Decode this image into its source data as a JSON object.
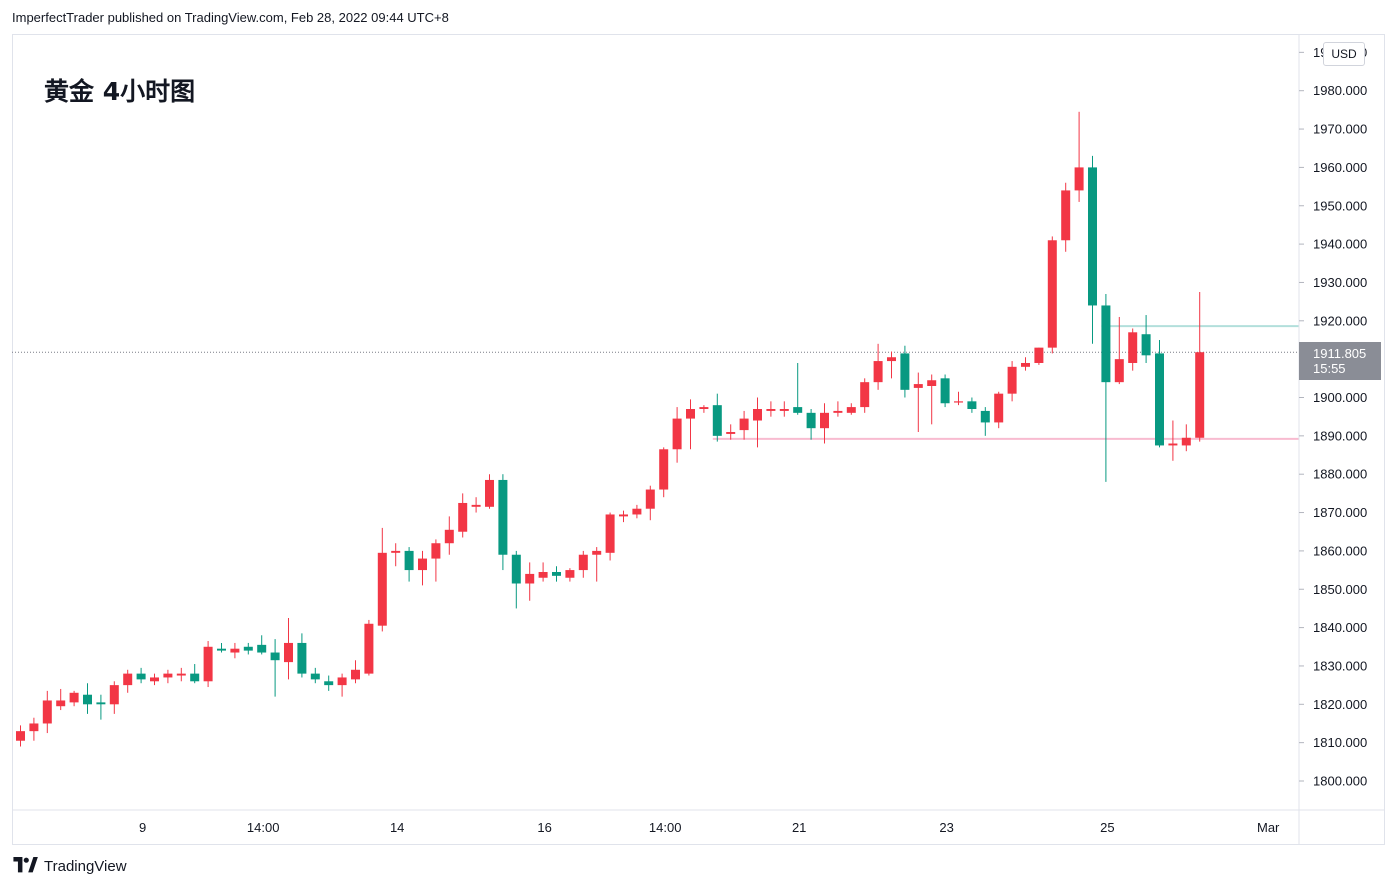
{
  "header": {
    "published_text": "ImperfectTrader published on TradingView.com, Feb 28, 2022 09:44 UTC+8"
  },
  "footer": {
    "brand": "TradingView",
    "logo_icon": "tradingview-logo-icon"
  },
  "price_axis": {
    "currency": "USD",
    "current_price": "1911.805",
    "countdown": "15:55"
  },
  "colors": {
    "up": "#f23645",
    "down": "#089981",
    "resistance_line": "#b2dfdb",
    "support_line": "#f8bbd0"
  },
  "chart_data": {
    "type": "candlestick",
    "title": "黄金 4小时图",
    "ylim": [
      1792,
      1996
    ],
    "yticks": [
      1800,
      1810,
      1820,
      1830,
      1840,
      1850,
      1860,
      1870,
      1880,
      1890,
      1900,
      1910,
      1920,
      1930,
      1940,
      1950,
      1960,
      1970,
      1980,
      1990
    ],
    "ytick_labels": [
      "1800.000",
      "1810.000",
      "1820.000",
      "1830.000",
      "1840.000",
      "1850.000",
      "1860.000",
      "1870.000",
      "1880.000",
      "1890.000",
      "1900.000",
      "1910.000",
      "1920.000",
      "1930.000",
      "1940.000",
      "1950.000",
      "1960.000",
      "1970.000",
      "1980.000",
      "1990.000"
    ],
    "xtick_labels": [
      {
        "label": "9",
        "bar": 9
      },
      {
        "label": "14:00",
        "bar": 18
      },
      {
        "label": "14",
        "bar": 28
      },
      {
        "label": "16",
        "bar": 39
      },
      {
        "label": "14:00",
        "bar": 48
      },
      {
        "label": "21",
        "bar": 58
      },
      {
        "label": "23",
        "bar": 69
      },
      {
        "label": "25",
        "bar": 81
      },
      {
        "label": "Mar",
        "bar": 93
      }
    ],
    "current_price": 1911.805,
    "horizontal_lines": [
      {
        "kind": "resistance",
        "value": 1918.6,
        "from_bar": 81
      },
      {
        "kind": "support",
        "value": 1889.2,
        "from_bar": 52
      }
    ],
    "candles": [
      {
        "o": 1810.5,
        "h": 1814.5,
        "l": 1809.0,
        "c": 1813.0
      },
      {
        "o": 1813.0,
        "h": 1816.5,
        "l": 1810.5,
        "c": 1815.0
      },
      {
        "o": 1815.0,
        "h": 1823.5,
        "l": 1812.5,
        "c": 1821.0
      },
      {
        "o": 1819.5,
        "h": 1824.0,
        "l": 1818.5,
        "c": 1821.0
      },
      {
        "o": 1820.5,
        "h": 1823.5,
        "l": 1819.5,
        "c": 1823.0
      },
      {
        "o": 1822.5,
        "h": 1825.5,
        "l": 1817.5,
        "c": 1820.0
      },
      {
        "o": 1820.5,
        "h": 1822.5,
        "l": 1816.0,
        "c": 1820.0
      },
      {
        "o": 1820.0,
        "h": 1826.0,
        "l": 1817.5,
        "c": 1825.0
      },
      {
        "o": 1825.0,
        "h": 1829.0,
        "l": 1823.0,
        "c": 1828.0
      },
      {
        "o": 1828.0,
        "h": 1829.5,
        "l": 1825.5,
        "c": 1826.5
      },
      {
        "o": 1826.0,
        "h": 1828.0,
        "l": 1825.0,
        "c": 1827.0
      },
      {
        "o": 1827.0,
        "h": 1829.0,
        "l": 1825.5,
        "c": 1828.0
      },
      {
        "o": 1827.5,
        "h": 1829.5,
        "l": 1826.0,
        "c": 1828.0
      },
      {
        "o": 1828.0,
        "h": 1830.5,
        "l": 1825.5,
        "c": 1826.0
      },
      {
        "o": 1826.0,
        "h": 1836.5,
        "l": 1824.5,
        "c": 1835.0
      },
      {
        "o": 1834.5,
        "h": 1836.0,
        "l": 1833.5,
        "c": 1834.0
      },
      {
        "o": 1833.5,
        "h": 1836.0,
        "l": 1832.0,
        "c": 1834.5
      },
      {
        "o": 1835.0,
        "h": 1836.0,
        "l": 1833.0,
        "c": 1834.0
      },
      {
        "o": 1835.5,
        "h": 1838.0,
        "l": 1833.0,
        "c": 1833.5
      },
      {
        "o": 1833.5,
        "h": 1837.0,
        "l": 1822.0,
        "c": 1831.5
      },
      {
        "o": 1831.0,
        "h": 1842.5,
        "l": 1826.5,
        "c": 1836.0
      },
      {
        "o": 1836.0,
        "h": 1838.5,
        "l": 1827.0,
        "c": 1828.0
      },
      {
        "o": 1828.0,
        "h": 1829.5,
        "l": 1825.5,
        "c": 1826.5
      },
      {
        "o": 1826.0,
        "h": 1827.5,
        "l": 1823.5,
        "c": 1825.0
      },
      {
        "o": 1825.0,
        "h": 1828.0,
        "l": 1822.0,
        "c": 1827.0
      },
      {
        "o": 1826.5,
        "h": 1831.5,
        "l": 1825.5,
        "c": 1829.0
      },
      {
        "o": 1828.0,
        "h": 1842.0,
        "l": 1827.5,
        "c": 1841.0
      },
      {
        "o": 1840.5,
        "h": 1866.0,
        "l": 1839.0,
        "c": 1859.5
      },
      {
        "o": 1859.5,
        "h": 1862.0,
        "l": 1856.0,
        "c": 1860.0
      },
      {
        "o": 1860.0,
        "h": 1861.0,
        "l": 1852.0,
        "c": 1855.0
      },
      {
        "o": 1855.0,
        "h": 1860.0,
        "l": 1851.0,
        "c": 1858.0
      },
      {
        "o": 1858.0,
        "h": 1863.0,
        "l": 1852.0,
        "c": 1862.0
      },
      {
        "o": 1862.0,
        "h": 1869.0,
        "l": 1859.0,
        "c": 1865.5
      },
      {
        "o": 1865.0,
        "h": 1875.0,
        "l": 1863.5,
        "c": 1872.5
      },
      {
        "o": 1871.5,
        "h": 1874.0,
        "l": 1870.0,
        "c": 1872.0
      },
      {
        "o": 1871.5,
        "h": 1880.0,
        "l": 1871.0,
        "c": 1878.5
      },
      {
        "o": 1878.5,
        "h": 1880.0,
        "l": 1855.0,
        "c": 1859.0
      },
      {
        "o": 1859.0,
        "h": 1860.0,
        "l": 1845.0,
        "c": 1851.5
      },
      {
        "o": 1851.5,
        "h": 1857.0,
        "l": 1847.0,
        "c": 1854.0
      },
      {
        "o": 1853.0,
        "h": 1857.0,
        "l": 1852.0,
        "c": 1854.5
      },
      {
        "o": 1854.5,
        "h": 1856.0,
        "l": 1852.0,
        "c": 1853.5
      },
      {
        "o": 1853.0,
        "h": 1855.5,
        "l": 1852.0,
        "c": 1855.0
      },
      {
        "o": 1855.0,
        "h": 1860.0,
        "l": 1853.0,
        "c": 1859.0
      },
      {
        "o": 1859.0,
        "h": 1861.0,
        "l": 1852.0,
        "c": 1860.0
      },
      {
        "o": 1859.5,
        "h": 1870.0,
        "l": 1857.5,
        "c": 1869.5
      },
      {
        "o": 1869.0,
        "h": 1870.5,
        "l": 1867.5,
        "c": 1869.5
      },
      {
        "o": 1869.5,
        "h": 1872.0,
        "l": 1868.5,
        "c": 1871.0
      },
      {
        "o": 1871.0,
        "h": 1877.0,
        "l": 1868.0,
        "c": 1876.0
      },
      {
        "o": 1876.0,
        "h": 1887.0,
        "l": 1874.0,
        "c": 1886.5
      },
      {
        "o": 1886.5,
        "h": 1897.5,
        "l": 1883.0,
        "c": 1894.5
      },
      {
        "o": 1894.5,
        "h": 1899.5,
        "l": 1886.5,
        "c": 1897.0
      },
      {
        "o": 1897.0,
        "h": 1898.0,
        "l": 1896.0,
        "c": 1897.5
      },
      {
        "o": 1898.0,
        "h": 1901.0,
        "l": 1888.5,
        "c": 1890.0
      },
      {
        "o": 1890.5,
        "h": 1893.0,
        "l": 1889.0,
        "c": 1891.0
      },
      {
        "o": 1891.5,
        "h": 1896.5,
        "l": 1889.0,
        "c": 1894.5
      },
      {
        "o": 1894.0,
        "h": 1900.0,
        "l": 1887.0,
        "c": 1897.0
      },
      {
        "o": 1896.5,
        "h": 1899.0,
        "l": 1895.0,
        "c": 1897.0
      },
      {
        "o": 1896.5,
        "h": 1899.0,
        "l": 1895.0,
        "c": 1897.0
      },
      {
        "o": 1897.5,
        "h": 1909.0,
        "l": 1895.5,
        "c": 1896.0
      },
      {
        "o": 1896.0,
        "h": 1897.0,
        "l": 1889.0,
        "c": 1892.0
      },
      {
        "o": 1892.0,
        "h": 1898.5,
        "l": 1888.0,
        "c": 1896.0
      },
      {
        "o": 1896.0,
        "h": 1899.0,
        "l": 1895.0,
        "c": 1896.5
      },
      {
        "o": 1896.0,
        "h": 1898.5,
        "l": 1895.5,
        "c": 1897.5
      },
      {
        "o": 1897.5,
        "h": 1905.0,
        "l": 1896.0,
        "c": 1904.0
      },
      {
        "o": 1904.0,
        "h": 1914.0,
        "l": 1902.0,
        "c": 1909.5
      },
      {
        "o": 1909.5,
        "h": 1912.0,
        "l": 1905.0,
        "c": 1910.5
      },
      {
        "o": 1911.5,
        "h": 1913.5,
        "l": 1900.0,
        "c": 1902.0
      },
      {
        "o": 1902.5,
        "h": 1906.5,
        "l": 1891.0,
        "c": 1903.5
      },
      {
        "o": 1903.0,
        "h": 1906.0,
        "l": 1893.0,
        "c": 1904.5
      },
      {
        "o": 1905.0,
        "h": 1906.0,
        "l": 1897.5,
        "c": 1898.5
      },
      {
        "o": 1899.0,
        "h": 1901.5,
        "l": 1898.0,
        "c": 1899.0
      },
      {
        "o": 1899.0,
        "h": 1900.0,
        "l": 1896.0,
        "c": 1897.0
      },
      {
        "o": 1896.5,
        "h": 1897.5,
        "l": 1890.0,
        "c": 1893.5
      },
      {
        "o": 1893.5,
        "h": 1901.5,
        "l": 1892.0,
        "c": 1901.0
      },
      {
        "o": 1901.0,
        "h": 1909.5,
        "l": 1899.0,
        "c": 1908.0
      },
      {
        "o": 1908.0,
        "h": 1910.5,
        "l": 1907.0,
        "c": 1909.0
      },
      {
        "o": 1909.0,
        "h": 1913.0,
        "l": 1908.5,
        "c": 1913.0
      },
      {
        "o": 1913.0,
        "h": 1942.0,
        "l": 1911.5,
        "c": 1941.0
      },
      {
        "o": 1941.0,
        "h": 1956.0,
        "l": 1938.0,
        "c": 1954.0
      },
      {
        "o": 1954.0,
        "h": 1974.5,
        "l": 1951.0,
        "c": 1960.0
      },
      {
        "o": 1960.0,
        "h": 1963.0,
        "l": 1914.0,
        "c": 1924.0
      },
      {
        "o": 1924.0,
        "h": 1927.0,
        "l": 1878.0,
        "c": 1904.0
      },
      {
        "o": 1904.0,
        "h": 1921.0,
        "l": 1903.5,
        "c": 1910.0
      },
      {
        "o": 1909.0,
        "h": 1918.0,
        "l": 1907.0,
        "c": 1917.0
      },
      {
        "o": 1916.5,
        "h": 1921.5,
        "l": 1909.0,
        "c": 1911.0
      },
      {
        "o": 1911.5,
        "h": 1915.0,
        "l": 1887.0,
        "c": 1887.5
      },
      {
        "o": 1887.5,
        "h": 1894.0,
        "l": 1883.5,
        "c": 1888.0
      },
      {
        "o": 1887.5,
        "h": 1893.0,
        "l": 1886.0,
        "c": 1889.5
      },
      {
        "o": 1889.5,
        "h": 1927.5,
        "l": 1888.5,
        "c": 1911.805
      }
    ]
  }
}
